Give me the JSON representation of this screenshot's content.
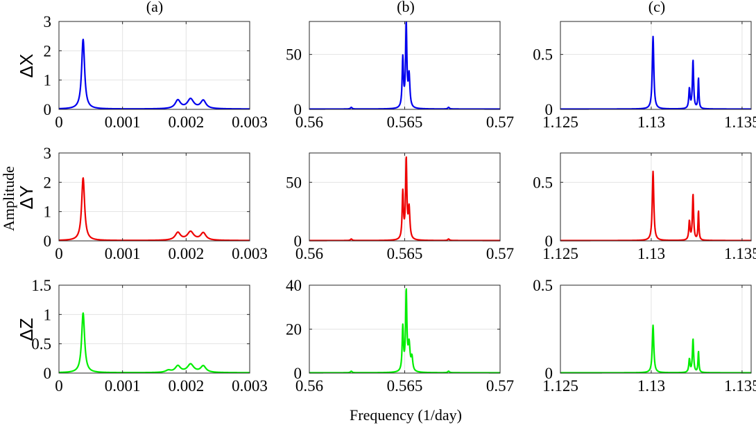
{
  "figure": {
    "panel_titles": [
      "(a)",
      "(b)",
      "(c)"
    ],
    "row_labels": [
      "ΔX",
      "ΔY",
      "ΔZ"
    ],
    "ylabel": "Amplitude",
    "xlabel": "Frequency (1/day)",
    "colors": [
      "#0000ee",
      "#ee0000",
      "#00ee00"
    ]
  },
  "chart_data": [
    {
      "type": "line",
      "row": 0,
      "col": 0,
      "series": "ΔX",
      "color": "#0000ee",
      "xlim": [
        0,
        0.003
      ],
      "ylim": [
        0,
        3
      ],
      "xticks": [
        0,
        0.001,
        0.002,
        0.003
      ],
      "xtick_labels": [
        "0",
        "0.001",
        "0.002",
        "0.003"
      ],
      "yticks": [
        0,
        1,
        2,
        3
      ],
      "ytick_labels": [
        "0",
        "1",
        "2",
        "3"
      ],
      "peaks": [
        {
          "x": 0.00038,
          "h": 2.38,
          "w": 2.8e-05
        },
        {
          "x": 0.00187,
          "h": 0.29,
          "w": 5e-05
        },
        {
          "x": 0.00207,
          "h": 0.33,
          "w": 6e-05
        },
        {
          "x": 0.00227,
          "h": 0.28,
          "w": 5e-05
        }
      ]
    },
    {
      "type": "line",
      "row": 0,
      "col": 1,
      "series": "ΔX",
      "color": "#0000ee",
      "xlim": [
        0.56,
        0.57
      ],
      "ylim": [
        0,
        80
      ],
      "xticks": [
        0.56,
        0.565,
        0.57
      ],
      "xtick_labels": [
        "0.56",
        "0.565",
        "0.57"
      ],
      "yticks": [
        0,
        50
      ],
      "ytick_labels": [
        "0",
        "50"
      ],
      "peaks": [
        {
          "x": 0.5649,
          "h": 45,
          "w": 4e-05
        },
        {
          "x": 0.56508,
          "h": 76,
          "w": 4e-05
        },
        {
          "x": 0.56523,
          "h": 29,
          "w": 5e-05
        },
        {
          "x": 0.5622,
          "h": 1.5,
          "w": 5e-05
        },
        {
          "x": 0.5673,
          "h": 1.5,
          "w": 5e-05
        }
      ]
    },
    {
      "type": "line",
      "row": 0,
      "col": 2,
      "series": "ΔX",
      "color": "#0000ee",
      "xlim": [
        1.125,
        1.1355
      ],
      "ylim": [
        0,
        0.8
      ],
      "xticks": [
        1.125,
        1.13,
        1.135
      ],
      "xtick_labels": [
        "1.125",
        "1.13",
        "1.135"
      ],
      "yticks": [
        0,
        0.5
      ],
      "ytick_labels": [
        "0",
        "0.5"
      ],
      "peaks": [
        {
          "x": 1.1301,
          "h": 0.66,
          "w": 5e-05
        },
        {
          "x": 1.1321,
          "h": 0.18,
          "w": 4e-05
        },
        {
          "x": 1.1323,
          "h": 0.44,
          "w": 4e-05
        },
        {
          "x": 1.1326,
          "h": 0.28,
          "w": 3e-05
        }
      ]
    },
    {
      "type": "line",
      "row": 1,
      "col": 0,
      "series": "ΔY",
      "color": "#ee0000",
      "xlim": [
        0,
        0.003
      ],
      "ylim": [
        0,
        3
      ],
      "xticks": [
        0,
        0.001,
        0.002,
        0.003
      ],
      "xtick_labels": [
        "0",
        "0.001",
        "0.002",
        "0.003"
      ],
      "yticks": [
        0,
        1,
        2,
        3
      ],
      "ytick_labels": [
        "0",
        "1",
        "2",
        "3"
      ],
      "peaks": [
        {
          "x": 0.00038,
          "h": 2.14,
          "w": 2.8e-05
        },
        {
          "x": 0.00187,
          "h": 0.26,
          "w": 5e-05
        },
        {
          "x": 0.00207,
          "h": 0.29,
          "w": 6e-05
        },
        {
          "x": 0.00227,
          "h": 0.25,
          "w": 5e-05
        }
      ]
    },
    {
      "type": "line",
      "row": 1,
      "col": 1,
      "series": "ΔY",
      "color": "#ee0000",
      "xlim": [
        0.56,
        0.57
      ],
      "ylim": [
        0,
        75
      ],
      "xticks": [
        0.56,
        0.565,
        0.57
      ],
      "xtick_labels": [
        "0.56",
        "0.565",
        "0.57"
      ],
      "yticks": [
        0,
        50
      ],
      "ytick_labels": [
        "0",
        "50"
      ],
      "peaks": [
        {
          "x": 0.5649,
          "h": 40,
          "w": 4e-05
        },
        {
          "x": 0.56508,
          "h": 68,
          "w": 4e-05
        },
        {
          "x": 0.56523,
          "h": 26,
          "w": 5e-05
        },
        {
          "x": 0.5622,
          "h": 1.3,
          "w": 5e-05
        },
        {
          "x": 0.5673,
          "h": 1.3,
          "w": 5e-05
        }
      ]
    },
    {
      "type": "line",
      "row": 1,
      "col": 2,
      "series": "ΔY",
      "color": "#ee0000",
      "xlim": [
        1.125,
        1.1355
      ],
      "ylim": [
        0,
        0.75
      ],
      "xticks": [
        1.125,
        1.13,
        1.135
      ],
      "xtick_labels": [
        "1.125",
        "1.13",
        "1.135"
      ],
      "yticks": [
        0,
        0.5
      ],
      "ytick_labels": [
        "0",
        "0.5"
      ],
      "peaks": [
        {
          "x": 1.1301,
          "h": 0.59,
          "w": 5e-05
        },
        {
          "x": 1.1321,
          "h": 0.16,
          "w": 4e-05
        },
        {
          "x": 1.1323,
          "h": 0.39,
          "w": 4e-05
        },
        {
          "x": 1.1326,
          "h": 0.25,
          "w": 3e-05
        }
      ]
    },
    {
      "type": "line",
      "row": 2,
      "col": 0,
      "series": "ΔZ",
      "color": "#00ee00",
      "xlim": [
        0,
        0.003
      ],
      "ylim": [
        0,
        1.5
      ],
      "xticks": [
        0,
        0.001,
        0.002,
        0.003
      ],
      "xtick_labels": [
        "0",
        "0.001",
        "0.002",
        "0.003"
      ],
      "yticks": [
        0,
        0.5,
        1,
        1.5
      ],
      "ytick_labels": [
        "0",
        "0.5",
        "1",
        "1.5"
      ],
      "peaks": [
        {
          "x": 0.00038,
          "h": 1.02,
          "w": 2.8e-05
        },
        {
          "x": 0.00172,
          "h": 0.035,
          "w": 5e-05
        },
        {
          "x": 0.00187,
          "h": 0.11,
          "w": 5e-05
        },
        {
          "x": 0.00207,
          "h": 0.14,
          "w": 6e-05
        },
        {
          "x": 0.00227,
          "h": 0.11,
          "w": 5e-05
        }
      ]
    },
    {
      "type": "line",
      "row": 2,
      "col": 1,
      "series": "ΔZ",
      "color": "#00ee00",
      "xlim": [
        0.56,
        0.57
      ],
      "ylim": [
        0,
        40
      ],
      "xticks": [
        0.56,
        0.565,
        0.57
      ],
      "xtick_labels": [
        "0.56",
        "0.565",
        "0.57"
      ],
      "yticks": [
        0,
        20,
        40
      ],
      "ytick_labels": [
        "0",
        "20",
        "40"
      ],
      "peaks": [
        {
          "x": 0.5649,
          "h": 20,
          "w": 4e-05
        },
        {
          "x": 0.56508,
          "h": 36,
          "w": 4e-05
        },
        {
          "x": 0.56523,
          "h": 12,
          "w": 6e-05
        },
        {
          "x": 0.56538,
          "h": 6,
          "w": 5e-05
        },
        {
          "x": 0.5622,
          "h": 0.7,
          "w": 5e-05
        },
        {
          "x": 0.5673,
          "h": 0.7,
          "w": 5e-05
        }
      ]
    },
    {
      "type": "line",
      "row": 2,
      "col": 2,
      "series": "ΔZ",
      "color": "#00ee00",
      "xlim": [
        1.125,
        1.1355
      ],
      "ylim": [
        0,
        0.5
      ],
      "xticks": [
        1.125,
        1.13,
        1.135
      ],
      "xtick_labels": [
        "1.125",
        "1.13",
        "1.135"
      ],
      "yticks": [
        0,
        0.5
      ],
      "ytick_labels": [
        "0",
        "0.5"
      ],
      "peaks": [
        {
          "x": 1.1301,
          "h": 0.27,
          "w": 5e-05
        },
        {
          "x": 1.1321,
          "h": 0.075,
          "w": 4e-05
        },
        {
          "x": 1.1323,
          "h": 0.19,
          "w": 4e-05
        },
        {
          "x": 1.1326,
          "h": 0.12,
          "w": 3e-05
        }
      ]
    }
  ]
}
